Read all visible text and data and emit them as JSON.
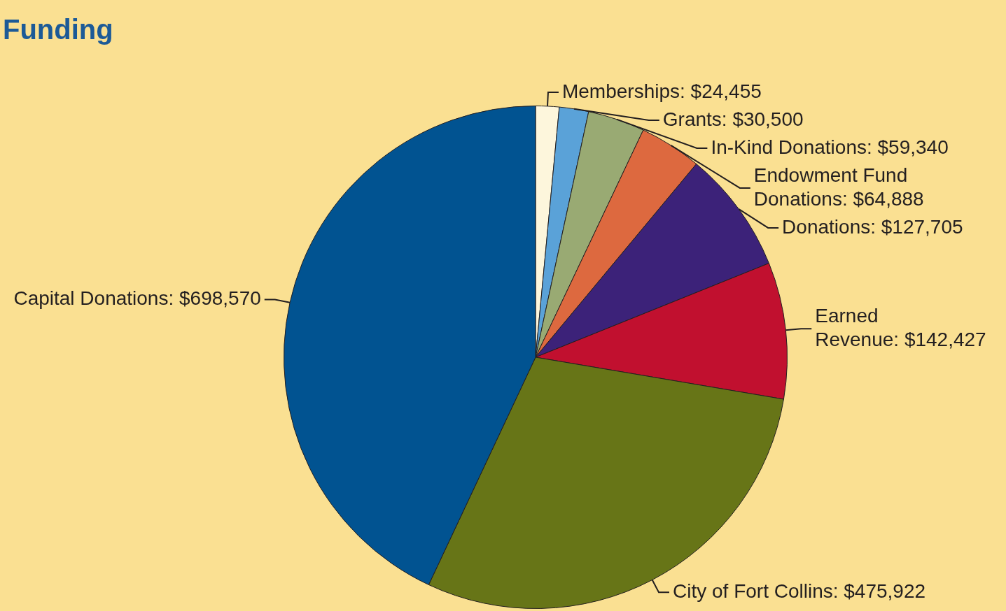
{
  "chart_data": {
    "type": "pie",
    "title": "Funding",
    "categories": [
      "Memberships",
      "Grants",
      "In-Kind Donations",
      "Endowment Fund Donations",
      "Donations",
      "Earned Revenue",
      "City of Fort Collins",
      "Capital Donations"
    ],
    "values": [
      24455,
      30500,
      59340,
      64888,
      127705,
      142427,
      475922,
      698570
    ],
    "value_labels": [
      "$24,455",
      "$30,500",
      "$59,340",
      "$64,888",
      "$127,705",
      "$142,427",
      "$475,922",
      "$698,570"
    ],
    "colors": [
      "#fdf6dc",
      "#5aa2d8",
      "#99aa73",
      "#dd693f",
      "#3c2279",
      "#c1102f",
      "#677517",
      "#015391"
    ]
  }
}
